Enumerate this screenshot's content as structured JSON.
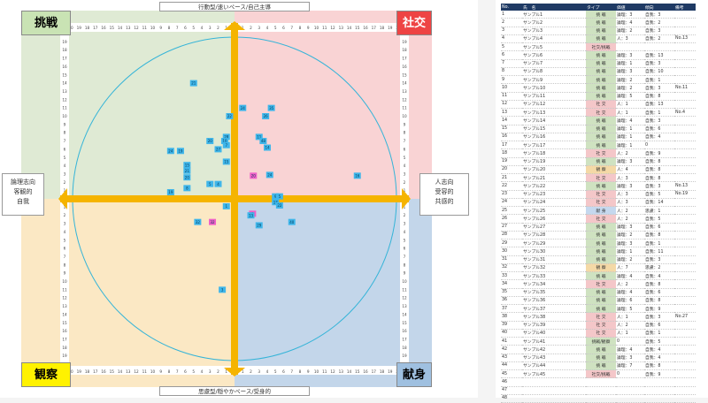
{
  "corners": {
    "top_left": "挑戦",
    "top_right": "社交",
    "bottom_left": "観察",
    "bottom_right": "献身"
  },
  "axis_labels": {
    "top": "行動型/速いペース/自己主導",
    "bottom": "思慮型/穏やかペース/受身的",
    "left": [
      "論理志向",
      "客観的",
      "自我"
    ],
    "right": [
      "人志向",
      "受容的",
      "共感的"
    ]
  },
  "colors": {
    "q_top_left": "#dfead4",
    "q_top_right": "#f9d3d4",
    "q_bottom_left": "#fbe8c4",
    "q_bottom_right": "#c3d6ea",
    "axis": "#f5b400",
    "corner_tl": "#c9e3b4",
    "corner_tr": "#ee4444",
    "corner_bl": "#fff200",
    "corner_br": "#9fc0e0",
    "circle": "#35b4d8",
    "marker_blue": "#3fb6ea",
    "marker_pink": "#f060c8",
    "header": "#1f3a64"
  },
  "chart_data": {
    "type": "scatter",
    "xlim": [
      -20,
      20
    ],
    "ylim": [
      -20,
      20
    ],
    "x_ticks": [
      20,
      19,
      18,
      17,
      16,
      15,
      14,
      13,
      12,
      11,
      10,
      9,
      8,
      7,
      6,
      5,
      4,
      3,
      2,
      1,
      0,
      1,
      2,
      3,
      4,
      5,
      6,
      7,
      8,
      9,
      10,
      11,
      12,
      13,
      14,
      15,
      16,
      17,
      18,
      19,
      20
    ],
    "y_ticks": [
      20,
      19,
      18,
      17,
      16,
      15,
      14,
      13,
      12,
      11,
      10,
      9,
      8,
      7,
      6,
      5,
      4,
      3,
      2,
      1,
      0,
      1,
      2,
      3,
      4,
      5,
      6,
      7,
      8,
      9,
      10,
      11,
      12,
      13,
      14,
      15,
      16,
      17,
      18,
      19,
      20
    ],
    "points": [
      {
        "x": -5.0,
        "y": 14.0,
        "label": "21",
        "color": "blue"
      },
      {
        "x": -0.6,
        "y": 10.0,
        "label": "22",
        "color": "blue"
      },
      {
        "x": 1.0,
        "y": 11.0,
        "label": "24",
        "color": "blue"
      },
      {
        "x": 4.5,
        "y": 11.0,
        "label": "35",
        "color": "blue"
      },
      {
        "x": 3.8,
        "y": 10.0,
        "label": "26",
        "color": "blue"
      },
      {
        "x": -1.0,
        "y": 7.5,
        "label": "28",
        "color": "blue"
      },
      {
        "x": -1.2,
        "y": 7.0,
        "label": "10",
        "color": "blue"
      },
      {
        "x": -3.0,
        "y": 7.0,
        "label": "20",
        "color": "blue"
      },
      {
        "x": -1.0,
        "y": 6.5,
        "label": "7",
        "color": "blue"
      },
      {
        "x": 3.0,
        "y": 7.5,
        "label": "11",
        "color": "blue"
      },
      {
        "x": 3.5,
        "y": 7.0,
        "label": "48",
        "color": "blue"
      },
      {
        "x": 4.0,
        "y": 6.2,
        "label": "14",
        "color": "blue"
      },
      {
        "x": -7.8,
        "y": 5.8,
        "label": "24",
        "color": "blue"
      },
      {
        "x": -6.6,
        "y": 5.8,
        "label": "19",
        "color": "blue"
      },
      {
        "x": -2.0,
        "y": 6.0,
        "label": "27",
        "color": "blue"
      },
      {
        "x": -1.0,
        "y": 4.5,
        "label": "15",
        "color": "blue"
      },
      {
        "x": -5.8,
        "y": 4.1,
        "label": "15",
        "color": "blue"
      },
      {
        "x": -5.8,
        "y": 3.4,
        "label": "21",
        "color": "blue"
      },
      {
        "x": -5.8,
        "y": 2.6,
        "label": "20",
        "color": "blue"
      },
      {
        "x": -5.8,
        "y": 1.3,
        "label": "8",
        "color": "blue"
      },
      {
        "x": -3.0,
        "y": 1.8,
        "label": "5",
        "color": "blue"
      },
      {
        "x": -2.0,
        "y": 1.8,
        "label": "4",
        "color": "blue"
      },
      {
        "x": -7.8,
        "y": 0.8,
        "label": "19",
        "color": "blue"
      },
      {
        "x": 2.3,
        "y": 2.8,
        "label": "20",
        "color": "pink"
      },
      {
        "x": 4.3,
        "y": 2.9,
        "label": "24",
        "color": "blue"
      },
      {
        "x": 15.0,
        "y": 2.8,
        "label": "16",
        "color": "blue"
      },
      {
        "x": 5.0,
        "y": 0.3,
        "label": "9",
        "color": "blue"
      },
      {
        "x": 5.5,
        "y": 0.3,
        "label": "5",
        "color": "blue"
      },
      {
        "x": 5.0,
        "y": -0.4,
        "label": "17",
        "color": "blue"
      },
      {
        "x": 5.5,
        "y": -0.8,
        "label": "22",
        "color": "blue"
      },
      {
        "x": -1.0,
        "y": -0.9,
        "label": "1",
        "color": "blue"
      },
      {
        "x": 2.2,
        "y": -1.8,
        "label": "3",
        "color": "pink"
      },
      {
        "x": -4.5,
        "y": -2.8,
        "label": "32",
        "color": "blue"
      },
      {
        "x": -2.7,
        "y": -2.8,
        "label": "32",
        "color": "pink"
      },
      {
        "x": 3.0,
        "y": -3.2,
        "label": "29",
        "color": "blue"
      },
      {
        "x": 7.0,
        "y": -2.8,
        "label": "40",
        "color": "blue"
      },
      {
        "x": 2.0,
        "y": -2.0,
        "label": "13",
        "color": "blue"
      },
      {
        "x": -1.5,
        "y": -11.0,
        "label": "3",
        "color": "blue"
      }
    ]
  },
  "table": {
    "headers": [
      "No.",
      "氏　名",
      "タイプ",
      "価値",
      "傾向",
      "備考"
    ],
    "rows": [
      {
        "no": "1",
        "name": "サンプル1",
        "type": "挑 戦",
        "val": "論理：3",
        "trend": "自我：3",
        "note": "",
        "tc": "#cfe2c1"
      },
      {
        "no": "2",
        "name": "サンプル2",
        "type": "挑 戦",
        "val": "論理：4",
        "trend": "自我：2",
        "note": "",
        "tc": "#cfe2c1"
      },
      {
        "no": "3",
        "name": "サンプル3",
        "type": "挑 戦",
        "val": "論理：2",
        "trend": "自我：3",
        "note": "",
        "tc": "#cfe2c1"
      },
      {
        "no": "4",
        "name": "サンプル4",
        "type": "挑 戦",
        "val": "人：3",
        "trend": "自我：2",
        "note": "No.13",
        "tc": "#cfe2c1"
      },
      {
        "no": "5",
        "name": "サンプル5",
        "type": "社交/挑戦",
        "val": "",
        "trend": "",
        "note": "",
        "tc": "#f4c7c9"
      },
      {
        "no": "6",
        "name": "サンプル6",
        "type": "挑 戦",
        "val": "論理：3",
        "trend": "自我：13",
        "note": "",
        "tc": "#cfe2c1"
      },
      {
        "no": "7",
        "name": "サンプル7",
        "type": "挑 戦",
        "val": "論理：1",
        "trend": "自我：3",
        "note": "",
        "tc": "#cfe2c1"
      },
      {
        "no": "8",
        "name": "サンプル8",
        "type": "挑 戦",
        "val": "論理：3",
        "trend": "自我：10",
        "note": "",
        "tc": "#cfe2c1"
      },
      {
        "no": "9",
        "name": "サンプル9",
        "type": "挑 戦",
        "val": "論理：2",
        "trend": "自我：1",
        "note": "",
        "tc": "#cfe2c1"
      },
      {
        "no": "10",
        "name": "サンプル10",
        "type": "挑 戦",
        "val": "論理：2",
        "trend": "自我：3",
        "note": "No.11",
        "tc": "#cfe2c1"
      },
      {
        "no": "11",
        "name": "サンプル11",
        "type": "挑 戦",
        "val": "論理：5",
        "trend": "自我：8",
        "note": "",
        "tc": "#cfe2c1"
      },
      {
        "no": "12",
        "name": "サンプル12",
        "type": "社 交",
        "val": "人：1",
        "trend": "自我：13",
        "note": "",
        "tc": "#f4c7c9"
      },
      {
        "no": "13",
        "name": "サンプル13",
        "type": "社 交",
        "val": "人：1",
        "trend": "自我：1",
        "note": "No.4",
        "tc": "#f4c7c9"
      },
      {
        "no": "14",
        "name": "サンプル14",
        "type": "挑 戦",
        "val": "論理：4",
        "trend": "自我：3",
        "note": "",
        "tc": "#cfe2c1"
      },
      {
        "no": "15",
        "name": "サンプル15",
        "type": "挑 戦",
        "val": "論理：1",
        "trend": "自我：6",
        "note": "",
        "tc": "#cfe2c1"
      },
      {
        "no": "16",
        "name": "サンプル16",
        "type": "挑 戦",
        "val": "論理：1",
        "trend": "自我：4",
        "note": "",
        "tc": "#cfe2c1"
      },
      {
        "no": "17",
        "name": "サンプル17",
        "type": "挑 戦",
        "val": "論理：1",
        "trend": "0",
        "note": "",
        "tc": "#cfe2c1"
      },
      {
        "no": "18",
        "name": "サンプル18",
        "type": "社 交",
        "val": "人：2",
        "trend": "自我：9",
        "note": "",
        "tc": "#f4c7c9"
      },
      {
        "no": "19",
        "name": "サンプル19",
        "type": "挑 戦",
        "val": "論理：3",
        "trend": "自我：8",
        "note": "",
        "tc": "#cfe2c1"
      },
      {
        "no": "20",
        "name": "サンプル20",
        "type": "観 察",
        "val": "人：4",
        "trend": "自我：8",
        "note": "",
        "tc": "#f4d9a6"
      },
      {
        "no": "21",
        "name": "サンプル21",
        "type": "社 交",
        "val": "人：3",
        "trend": "自我：8",
        "note": "",
        "tc": "#f4c7c9"
      },
      {
        "no": "22",
        "name": "サンプル22",
        "type": "挑 戦",
        "val": "論理：3",
        "trend": "自我：3",
        "note": "No.13",
        "tc": "#cfe2c1"
      },
      {
        "no": "23",
        "name": "サンプル23",
        "type": "社 交",
        "val": "人：3",
        "trend": "自我：5",
        "note": "No.19",
        "tc": "#f4c7c9"
      },
      {
        "no": "24",
        "name": "サンプル24",
        "type": "社 交",
        "val": "人：3",
        "trend": "自我：14",
        "note": "",
        "tc": "#f4c7c9"
      },
      {
        "no": "25",
        "name": "サンプル25",
        "type": "献 身",
        "val": "人：2",
        "trend": "思慮：1",
        "note": "",
        "tc": "#c5d8ee"
      },
      {
        "no": "26",
        "name": "サンプル26",
        "type": "社 交",
        "val": "人：2",
        "trend": "自我：5",
        "note": "",
        "tc": "#f4c7c9"
      },
      {
        "no": "27",
        "name": "サンプル27",
        "type": "挑 戦",
        "val": "論理：3",
        "trend": "自我：6",
        "note": "",
        "tc": "#cfe2c1"
      },
      {
        "no": "28",
        "name": "サンプル28",
        "type": "挑 戦",
        "val": "論理：2",
        "trend": "自我：8",
        "note": "",
        "tc": "#cfe2c1"
      },
      {
        "no": "29",
        "name": "サンプル29",
        "type": "挑 戦",
        "val": "論理：3",
        "trend": "自我：1",
        "note": "",
        "tc": "#cfe2c1"
      },
      {
        "no": "30",
        "name": "サンプル30",
        "type": "挑 戦",
        "val": "論理：1",
        "trend": "自我：11",
        "note": "",
        "tc": "#cfe2c1"
      },
      {
        "no": "31",
        "name": "サンプル31",
        "type": "挑 戦",
        "val": "論理：2",
        "trend": "自我：3",
        "note": "",
        "tc": "#cfe2c1"
      },
      {
        "no": "32",
        "name": "サンプル32",
        "type": "観 察",
        "val": "人：7",
        "trend": "思慮：2",
        "note": "",
        "tc": "#f4d9a6"
      },
      {
        "no": "33",
        "name": "サンプル33",
        "type": "挑 戦",
        "val": "論理：4",
        "trend": "自我：4",
        "note": "",
        "tc": "#cfe2c1"
      },
      {
        "no": "34",
        "name": "サンプル34",
        "type": "社 交",
        "val": "人：2",
        "trend": "自我：8",
        "note": "",
        "tc": "#f4c7c9"
      },
      {
        "no": "35",
        "name": "サンプル35",
        "type": "挑 戦",
        "val": "論理：4",
        "trend": "自我：6",
        "note": "",
        "tc": "#cfe2c1"
      },
      {
        "no": "36",
        "name": "サンプル36",
        "type": "挑 戦",
        "val": "論理：6",
        "trend": "自我：8",
        "note": "",
        "tc": "#cfe2c1"
      },
      {
        "no": "37",
        "name": "サンプル37",
        "type": "挑 戦",
        "val": "論理：5",
        "trend": "自我：9",
        "note": "",
        "tc": "#cfe2c1"
      },
      {
        "no": "38",
        "name": "サンプル38",
        "type": "社 交",
        "val": "人：1",
        "trend": "自我：3",
        "note": "No.27",
        "tc": "#f4c7c9"
      },
      {
        "no": "39",
        "name": "サンプル39",
        "type": "社 交",
        "val": "人：2",
        "trend": "自我：6",
        "note": "",
        "tc": "#f4c7c9"
      },
      {
        "no": "40",
        "name": "サンプル40",
        "type": "社 交",
        "val": "人：1",
        "trend": "自我：1",
        "note": "",
        "tc": "#f4c7c9"
      },
      {
        "no": "41",
        "name": "サンプル41",
        "type": "挑戦/観察",
        "val": "0",
        "trend": "自我：5",
        "note": "",
        "tc": "#cfe2c1"
      },
      {
        "no": "42",
        "name": "サンプル42",
        "type": "挑 戦",
        "val": "論理：4",
        "trend": "自我：4",
        "note": "",
        "tc": "#cfe2c1"
      },
      {
        "no": "43",
        "name": "サンプル43",
        "type": "挑 戦",
        "val": "論理：3",
        "trend": "自我：4",
        "note": "",
        "tc": "#cfe2c1"
      },
      {
        "no": "44",
        "name": "サンプル44",
        "type": "挑 戦",
        "val": "論理：7",
        "trend": "自我：8",
        "note": "",
        "tc": "#cfe2c1"
      },
      {
        "no": "45",
        "name": "サンプル45",
        "type": "社交/挑戦",
        "val": "0",
        "trend": "自我：9",
        "note": "",
        "tc": "#f4c7c9"
      },
      {
        "no": "46",
        "name": "",
        "type": "",
        "val": "",
        "trend": "",
        "note": "",
        "tc": ""
      },
      {
        "no": "47",
        "name": "",
        "type": "",
        "val": "",
        "trend": "",
        "note": "",
        "tc": ""
      },
      {
        "no": "48",
        "name": "",
        "type": "",
        "val": "",
        "trend": "",
        "note": "",
        "tc": ""
      }
    ]
  }
}
